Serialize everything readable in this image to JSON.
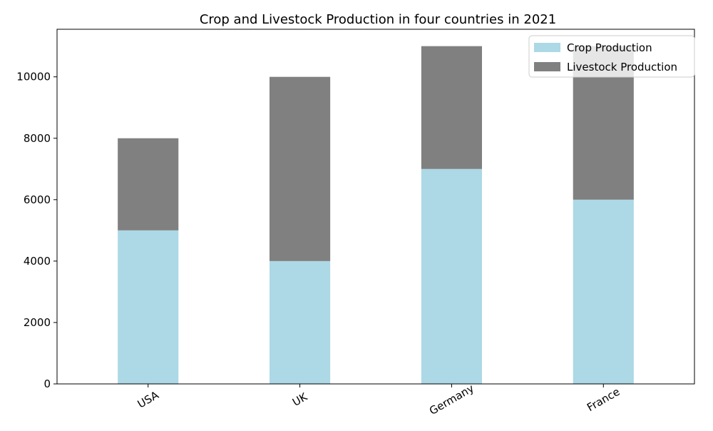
{
  "chart_data": {
    "type": "bar",
    "stacked": true,
    "title": "Crop and Livestock Production in four countries in 2021",
    "xlabel": "",
    "ylabel": "",
    "categories": [
      "USA",
      "UK",
      "Germany",
      "France"
    ],
    "series": [
      {
        "name": "Crop Production",
        "values": [
          5000,
          4000,
          7000,
          6000
        ],
        "color": "#add8e6"
      },
      {
        "name": "Livestock Production",
        "values": [
          3000,
          6000,
          4000,
          5000
        ],
        "color": "#808080"
      }
    ],
    "ylim": [
      0,
      11550
    ],
    "yticks": [
      0,
      2000,
      4000,
      6000,
      8000,
      10000
    ],
    "grid": false,
    "legend_position": "top-right",
    "x_tick_rotation": 30
  }
}
